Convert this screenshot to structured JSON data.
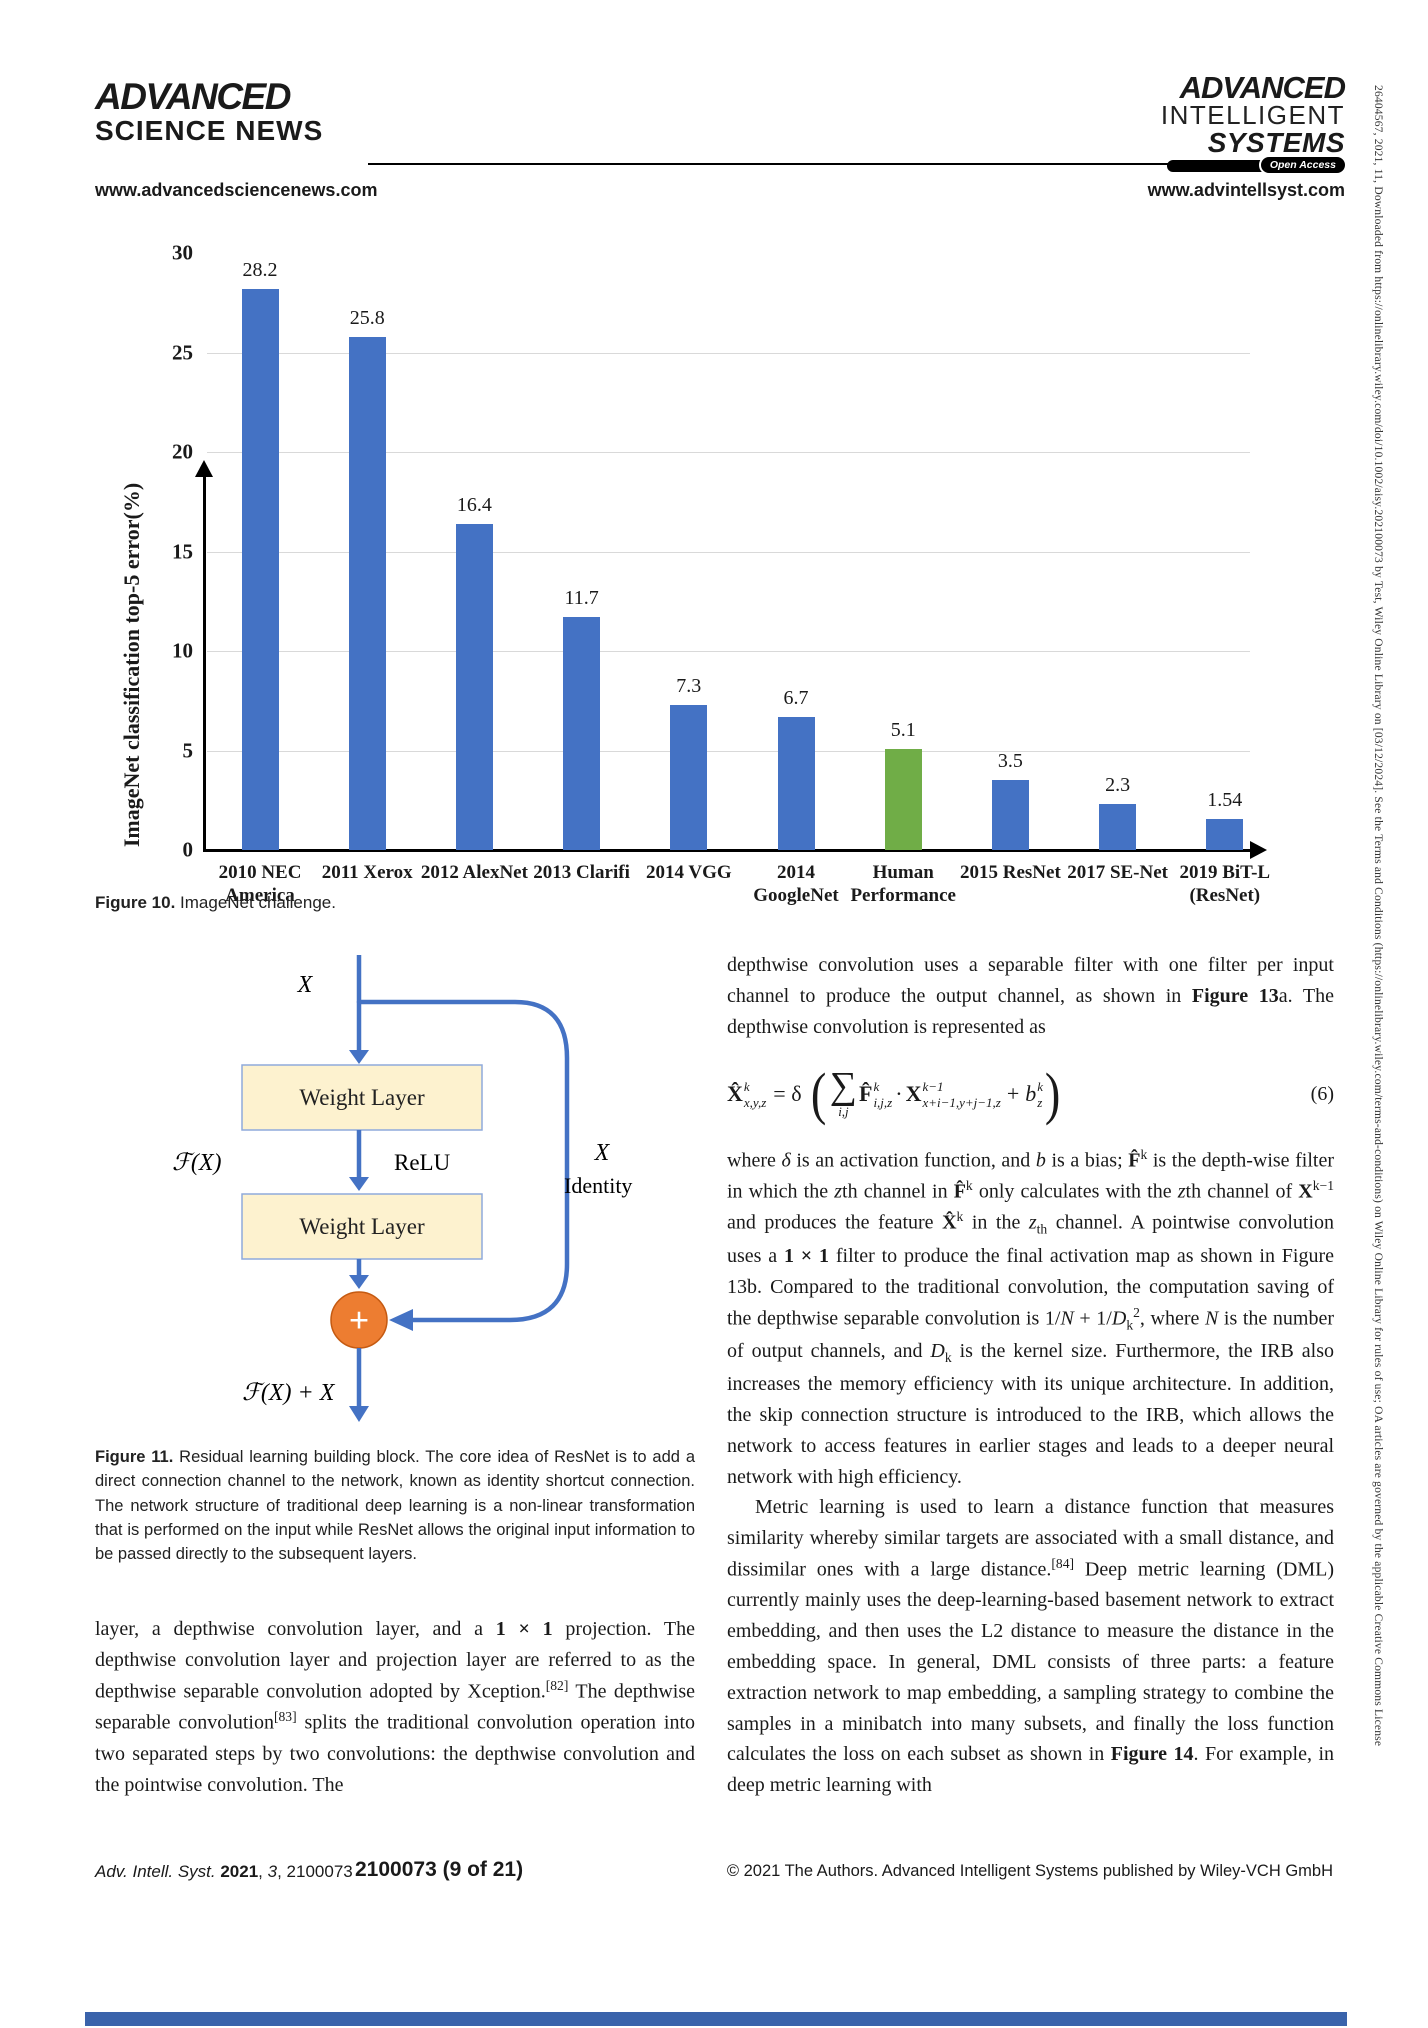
{
  "header": {
    "left_logo_line1": "ADVANCED",
    "left_logo_line2": "SCIENCE NEWS",
    "left_url": "www.advancedsciencenews.com",
    "right_logo_line1": "ADVANCED",
    "right_logo_line2": "INTELLIGENT",
    "right_logo_line3": "SYSTEMS",
    "open_access": "Open Access",
    "right_url": "www.advintellsyst.com"
  },
  "chart_data": {
    "type": "bar",
    "title": "",
    "xlabel": "",
    "ylabel": "ImageNet classification top-5 error(%)",
    "ylim": [
      0,
      30
    ],
    "ytick_step": 5,
    "grid": true,
    "legend": "none",
    "categories": [
      "2010 NEC\nAmerica",
      "2011 Xerox",
      "2012 AlexNet",
      "2013 Clarifi",
      "2014 VGG",
      "2014\nGoogleNet",
      "Human\nPerformance",
      "2015 ResNet",
      "2017 SE-Net",
      "2019 BiT-L\n(ResNet)"
    ],
    "values": [
      28.2,
      25.8,
      16.4,
      11.7,
      7.3,
      6.7,
      5.1,
      3.5,
      2.3,
      1.54
    ],
    "value_labels": [
      "28.2",
      "25.8",
      "16.4",
      "11.7",
      "7.3",
      "6.7",
      "5.1",
      "3.5",
      "2.3",
      "1.54"
    ],
    "bar_colors": [
      "#4472c4",
      "#4472c4",
      "#4472c4",
      "#4472c4",
      "#4472c4",
      "#4472c4",
      "#70ad47",
      "#4472c4",
      "#4472c4",
      "#4472c4"
    ],
    "colors": {
      "default": "#4472c4",
      "highlight": "#70ad47"
    }
  },
  "figure10_caption": [
    {
      "t": "Figure 10.",
      "s": "b"
    },
    {
      "t": "  ImageNet challenge."
    }
  ],
  "diagram": {
    "x_top": "X",
    "weight_layer_1": "Weight Layer",
    "fx": "ℱ(X)",
    "relu": "ReLU",
    "weight_layer_2": "Weight Layer",
    "x_right": "X",
    "identity": "Identity",
    "plus": "+",
    "output": "ℱ(X) + X",
    "colors": {
      "arrow": "#4472c4",
      "box_fill": "#fdf2cf",
      "box_border": "#8faadc",
      "circle": "#ed7d31"
    }
  },
  "figure11_caption": [
    {
      "t": "Figure 11.",
      "s": "b"
    },
    {
      "t": "  Residual learning building block. The core idea of ResNet is to add a direct connection channel to the network, known as identity shortcut connection. The network structure of traditional deep learning is a non-linear transformation that is performed on the input while ResNet allows the original input information to be passed directly to the subsequent layers."
    }
  ],
  "left_column": {
    "body": [
      {
        "t": "layer, a depthwise convolution layer, and a "
      },
      {
        "t": "1 × 1",
        "s": "b"
      },
      {
        "t": " projection. The depthwise convolution layer and projection layer are referred to as the depthwise separable convolution adopted by Xception."
      },
      {
        "t": "[82]",
        "s": "sup"
      },
      {
        "t": " The depthwise separable convolution"
      },
      {
        "t": "[83]",
        "s": "sup"
      },
      {
        "t": " splits the traditional convolution operation into two separated steps by two convolutions: the depthwise convolution and the pointwise convolution. The"
      }
    ]
  },
  "right_column": {
    "p1": [
      {
        "t": "depthwise convolution uses a separable filter with one filter per input channel to produce the output channel, as shown in "
      },
      {
        "t": "Figure 13",
        "s": "b"
      },
      {
        "t": "a. The depthwise convolution is represented as"
      }
    ],
    "equation": {
      "lhs_base": "X̂",
      "lhs_sup": "k",
      "lhs_sub": "x,y,z",
      "equals": "= δ",
      "lparen": "(",
      "sum": "∑",
      "sum_sub": "i,j",
      "f_base": "F̂",
      "f_sup": "k",
      "f_sub": "i,j,z",
      "dot": "·",
      "x_base": "X",
      "x_sup": "k−1",
      "x_sub": "x+i−1,y+j−1,z",
      "plus": "+",
      "b_base": "b",
      "b_sup": "k",
      "b_sub": "z",
      "rparen": ")",
      "number": "(6)"
    },
    "p2": [
      {
        "t": "where "
      },
      {
        "t": "δ",
        "s": "i"
      },
      {
        "t": " is an activation function, and "
      },
      {
        "t": "b",
        "s": "i"
      },
      {
        "t": " is a bias; "
      },
      {
        "t": "F̂",
        "s": "b"
      },
      {
        "t": "k",
        "s": "sup"
      },
      {
        "t": " is the depth-wise filter in which the "
      },
      {
        "t": "z",
        "s": "i"
      },
      {
        "t": "th channel in "
      },
      {
        "t": "F̂",
        "s": "b"
      },
      {
        "t": "k",
        "s": "sup"
      },
      {
        "t": " only calculates with the "
      },
      {
        "t": "z",
        "s": "i"
      },
      {
        "t": "th channel of "
      },
      {
        "t": "X",
        "s": "b"
      },
      {
        "t": "k−1",
        "s": "sup"
      },
      {
        "t": " and produces the feature "
      },
      {
        "t": "X̂",
        "s": "b"
      },
      {
        "t": "k",
        "s": "sup"
      },
      {
        "t": " in the "
      },
      {
        "t": "z",
        "s": "i"
      },
      {
        "t": "th",
        "s": "sub"
      },
      {
        "t": " channel. A pointwise convolution uses a "
      },
      {
        "t": "1 × 1",
        "s": "b"
      },
      {
        "t": " filter to produce the final activation map as shown in Figure 13b. Compared to the traditional convolution, the computation saving of the depthwise separable convolution is 1/"
      },
      {
        "t": "N",
        "s": "i"
      },
      {
        "t": " + 1/"
      },
      {
        "t": "D",
        "s": "i"
      },
      {
        "t": "k",
        "s": "sub"
      },
      {
        "t": "2",
        "s": "sup"
      },
      {
        "t": ", where "
      },
      {
        "t": "N",
        "s": "i"
      },
      {
        "t": " is the number of output channels, and "
      },
      {
        "t": "D",
        "s": "i"
      },
      {
        "t": "k",
        "s": "sub"
      },
      {
        "t": " is the kernel size. Furthermore, the IRB also increases the memory efficiency with its unique architecture. In addition, the skip connection structure is introduced to the IRB, which allows the network to access features in earlier stages and leads to a deeper neural network with high efficiency."
      }
    ],
    "p3": [
      {
        "t": "Metric learning is used to learn a distance function that measures similarity whereby similar targets are associated with a small distance, and dissimilar ones with a large distance."
      },
      {
        "t": "[84]",
        "s": "sup"
      },
      {
        "t": " Deep metric learning (DML) currently mainly uses the deep-learning-based basement network to extract embedding, and then uses the L2 distance to measure the distance in the embedding space. In general, DML consists of three parts: a feature extraction network to map embedding, a sampling strategy to combine the samples in a minibatch into many subsets, and finally the loss function calculates the loss on each subset as shown in "
      },
      {
        "t": "Figure 14",
        "s": "b"
      },
      {
        "t": ". For example, in deep metric learning with"
      }
    ]
  },
  "footer": {
    "left": [
      {
        "t": "Adv. Intell. Syst. ",
        "s": "i"
      },
      {
        "t": "2021",
        "s": "b"
      },
      {
        "t": ", "
      },
      {
        "t": "3",
        "s": "i"
      },
      {
        "t": ", 2100073"
      }
    ],
    "center": "2100073 (9 of 21)",
    "right": "© 2021 The Authors. Advanced Intelligent Systems published by Wiley-VCH GmbH"
  },
  "sidebar_text": "26404567, 2021, 11, Downloaded from https://onlinelibrary.wiley.com/doi/10.1002/aisy.202100073 by Test, Wiley Online Library on [03/12/2024]. See the Terms and Conditions (https://onlinelibrary.wiley.com/terms-and-conditions) on Wiley Online Library for rules of use; OA articles are governed by the applicable Creative Commons License"
}
